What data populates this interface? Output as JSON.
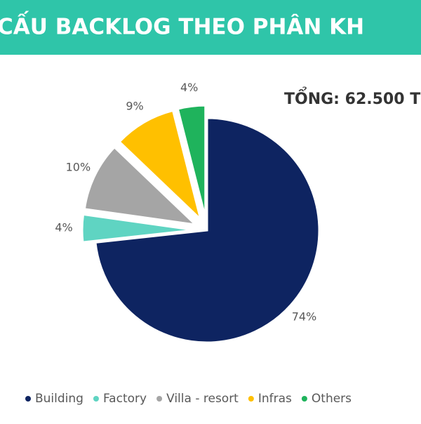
{
  "chart_data": {
    "type": "pie",
    "title": "CẤU BACKLOG THEO PHÂN KH",
    "annotation": "TỔNG: 62.500 T",
    "categories": [
      "Building",
      "Factory",
      "Villa - resort",
      "Infras",
      "Others"
    ],
    "values": [
      74,
      4,
      10,
      9,
      4
    ],
    "value_labels": [
      "74%",
      "4%",
      "10%",
      "9%",
      "4%"
    ],
    "colors": [
      "#0e2461",
      "#5fd4c2",
      "#a5a5a5",
      "#ffc000",
      "#1fb35c"
    ],
    "exploded": [
      false,
      true,
      true,
      true,
      true
    ],
    "legend": "bottom"
  }
}
